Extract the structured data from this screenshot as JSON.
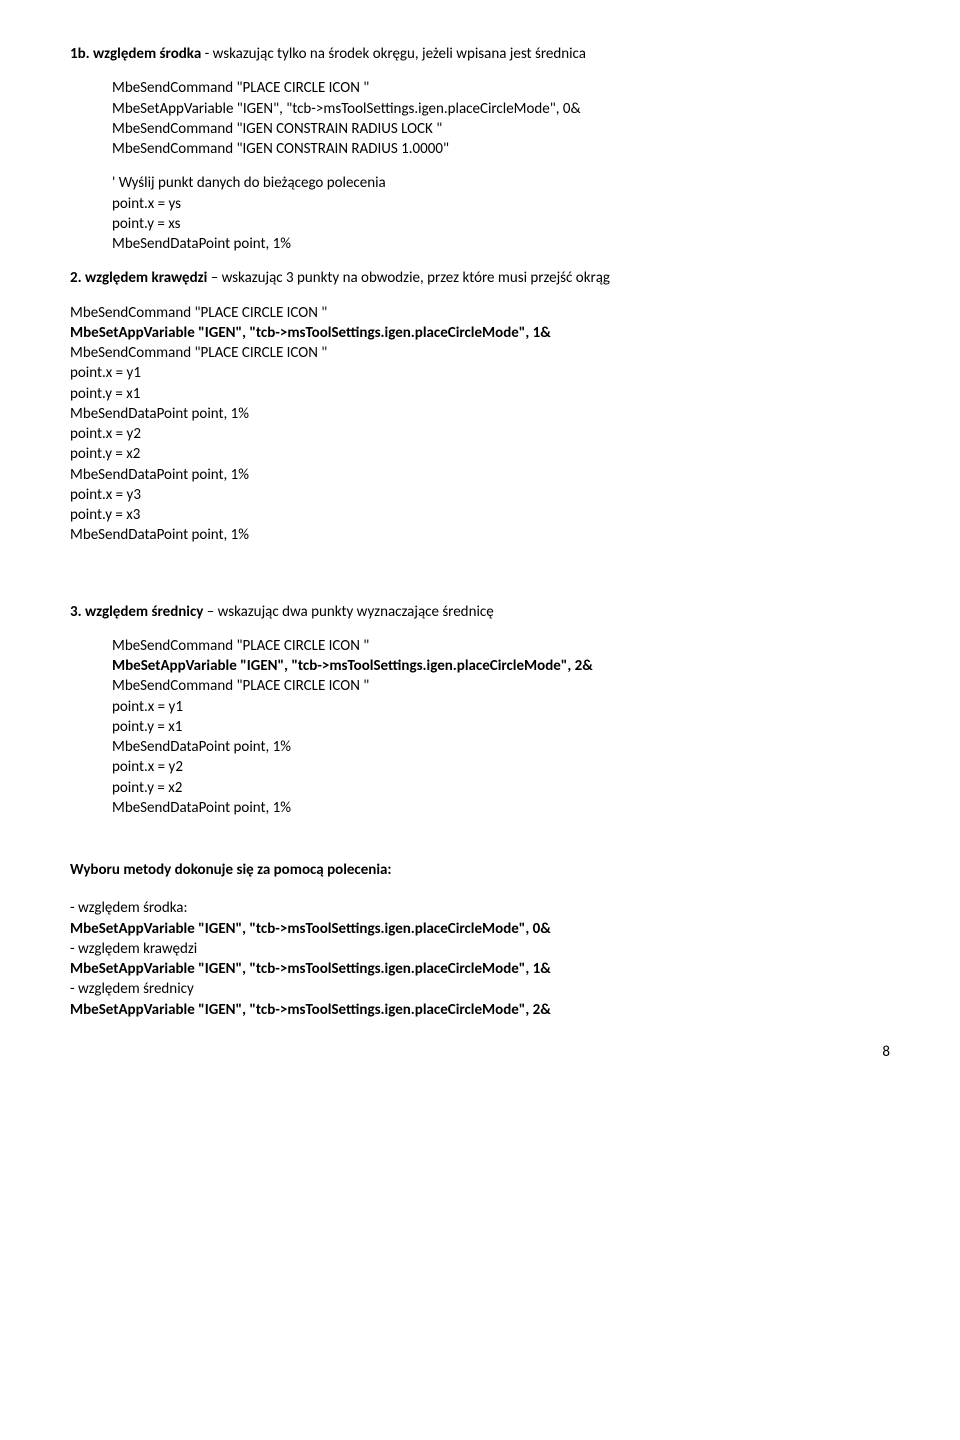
{
  "h1b": {
    "lead_bold": "1b. względem środka",
    "lead_rest": " - wskazując tylko na środek okręgu, jeżeli wpisana jest średnica",
    "code": [
      "MbeSendCommand \"PLACE CIRCLE ICON \"",
      "MbeSetAppVariable \"IGEN\", \"tcb->msToolSettings.igen.placeCircleMode\", 0&",
      "MbeSendCommand \"IGEN CONSTRAIN RADIUS LOCK \"",
      "MbeSendCommand \"IGEN CONSTRAIN RADIUS 1.0000\""
    ],
    "code2": [
      "' Wyślij punkt danych do bieżącego polecenia",
      "point.x = ys",
      " point.y = xs",
      "MbeSendDataPoint point, 1%"
    ]
  },
  "h2": {
    "lead_bold": "2. względem krawędzi",
    "lead_rest": " – wskazując 3 punkty na obwodzie, przez które musi przejść okrąg",
    "line1": "MbeSendCommand \"PLACE CIRCLE ICON \"",
    "line2": "MbeSetAppVariable \"IGEN\", \"tcb->msToolSettings.igen.placeCircleMode\", 1&",
    "rest": [
      "MbeSendCommand \"PLACE CIRCLE ICON \"",
      "point.x = y1",
      "point.y = x1",
      "MbeSendDataPoint point, 1%",
      "point.x = y2",
      "point.y = x2",
      "MbeSendDataPoint point, 1%",
      "point.x = y3",
      "point.y = x3",
      "MbeSendDataPoint point, 1%"
    ]
  },
  "h3": {
    "lead_bold": "3. względem średnicy",
    "lead_rest": " – wskazując dwa punkty wyznaczające średnicę",
    "line1": "MbeSendCommand \"PLACE CIRCLE ICON \"",
    "line2": "MbeSetAppVariable \"IGEN\", \"tcb->msToolSettings.igen.placeCircleMode\", 2&",
    "rest": [
      "MbeSendCommand \"PLACE CIRCLE ICON \"",
      "point.x = y1",
      "point.y = x1",
      "MbeSendDataPoint point, 1%",
      "point.x = y2",
      "point.y = x2",
      "MbeSendDataPoint point, 1%"
    ]
  },
  "wybor": {
    "title": "Wyboru metody dokonuje się za pomocą polecenia:",
    "rows": [
      {
        "label": "- względem środka:",
        "cmd": "MbeSetAppVariable \"IGEN\", \"tcb->msToolSettings.igen.placeCircleMode\", 0&"
      },
      {
        "label": "- względem krawędzi",
        "cmd": "MbeSetAppVariable \"IGEN\", \"tcb->msToolSettings.igen.placeCircleMode\", 1&"
      },
      {
        "label": "- względem średnicy",
        "cmd": "MbeSetAppVariable \"IGEN\", \"tcb->msToolSettings.igen.placeCircleMode\", 2&"
      }
    ]
  },
  "page_number": "8"
}
